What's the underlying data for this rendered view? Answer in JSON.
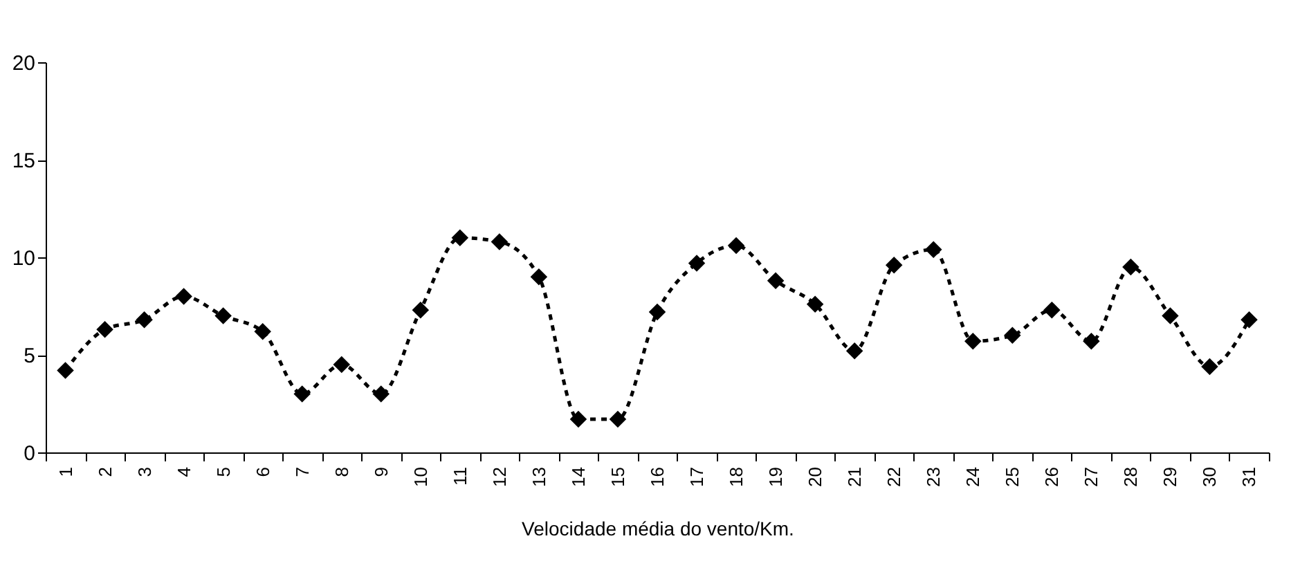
{
  "chart_data": {
    "type": "line",
    "xlabel": "Velocidade média do vento/Km.",
    "categories": [
      "1",
      "2",
      "3",
      "4",
      "5",
      "6",
      "7",
      "8",
      "9",
      "10",
      "11",
      "12",
      "13",
      "14",
      "15",
      "16",
      "17",
      "18",
      "19",
      "20",
      "21",
      "22",
      "23",
      "24",
      "25",
      "26",
      "27",
      "28",
      "29",
      "30",
      "31"
    ],
    "series": [
      {
        "color": "#000000",
        "values": [
          4.2,
          6.3,
          6.8,
          8.0,
          7.0,
          6.2,
          3.0,
          4.5,
          3.0,
          7.3,
          11.0,
          10.8,
          9.0,
          1.7,
          1.7,
          7.2,
          9.7,
          10.6,
          8.8,
          7.6,
          5.2,
          9.6,
          10.4,
          5.7,
          6.0,
          7.3,
          5.7,
          9.5,
          7.0,
          4.4,
          6.8
        ]
      }
    ],
    "ylim": [
      0,
      20
    ],
    "yticks": [
      0,
      5,
      10,
      15,
      20
    ],
    "grid": false,
    "legend": false,
    "marker": "diamond",
    "line_style": "dashed"
  }
}
